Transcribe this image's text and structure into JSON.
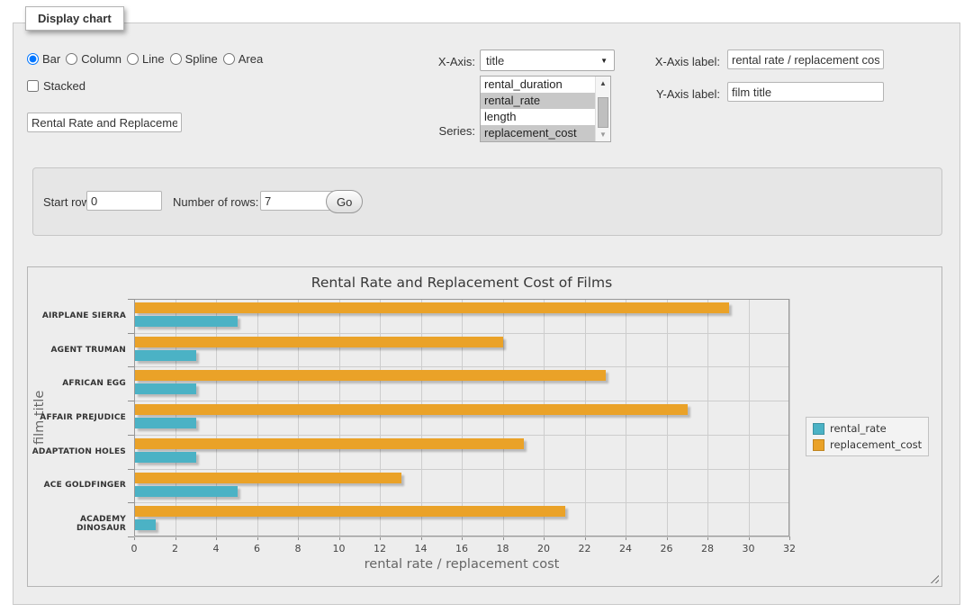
{
  "fieldset": {
    "legend": "Display chart"
  },
  "controls": {
    "chart_types": {
      "options": [
        "Bar",
        "Column",
        "Line",
        "Spline",
        "Area"
      ],
      "selected": "Bar"
    },
    "stacked": {
      "label": "Stacked",
      "checked": false
    },
    "chart_title_input": {
      "value": "Rental Rate and Replacemer"
    },
    "x_axis": {
      "label": "X-Axis:",
      "selected_value": "title"
    },
    "series_select": {
      "label": "Series:",
      "options": [
        {
          "label": "rental_duration",
          "selected": false
        },
        {
          "label": "rental_rate",
          "selected": true
        },
        {
          "label": "length",
          "selected": false
        },
        {
          "label": "replacement_cost",
          "selected": true
        }
      ]
    },
    "x_axis_label": {
      "label": "X-Axis label:",
      "value": "rental rate / replacement cost"
    },
    "y_axis_label": {
      "label": "Y-Axis label:",
      "value": "film title"
    }
  },
  "row_controls": {
    "start_row": {
      "label": "Start row:",
      "value": "0"
    },
    "num_rows": {
      "label": "Number of rows:",
      "value": "7"
    },
    "go_button_label": "Go"
  },
  "colors": {
    "rental_rate": "#4bb2c5",
    "replacement_cost": "#eaa228",
    "selected_list_item_bg": "#c8c8c8",
    "panel_bg": "#ededed"
  },
  "chart_data": {
    "type": "bar",
    "orientation": "horizontal",
    "title": "Rental Rate and Replacement Cost of Films",
    "xlabel": "rental rate / replacement cost",
    "ylabel": "film title",
    "categories": [
      "AIRPLANE SIERRA",
      "AGENT TRUMAN",
      "AFRICAN EGG",
      "AFFAIR PREJUDICE",
      "ADAPTATION HOLES",
      "ACE GOLDFINGER",
      "ACADEMY DINOSAUR"
    ],
    "series": [
      {
        "name": "rental_rate",
        "color": "#4bb2c5",
        "values": [
          4.99,
          2.99,
          2.99,
          2.99,
          2.99,
          4.99,
          0.99
        ]
      },
      {
        "name": "replacement_cost",
        "color": "#eaa228",
        "values": [
          28.99,
          17.99,
          22.99,
          26.99,
          18.99,
          12.99,
          20.99
        ]
      }
    ],
    "xlim": [
      0,
      32
    ],
    "xtick_step": 2,
    "grid": true,
    "legend_position": "right",
    "draw_order_in_band": [
      "replacement_cost",
      "rental_rate"
    ]
  }
}
